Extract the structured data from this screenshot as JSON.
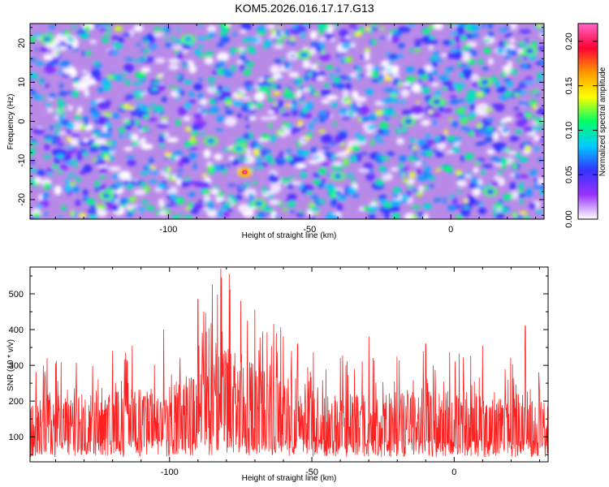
{
  "title": "KOM5.2026.016.17.17.G13",
  "chart_data": [
    {
      "type": "heatmap",
      "xlabel": "Height of straight line (km)",
      "ylabel": "Frequency (Hz)",
      "xlim": [
        -149,
        33
      ],
      "ylim": [
        -25,
        25
      ],
      "x_ticks": [
        -100,
        -50,
        0
      ],
      "x_tick_labels": [
        "-100",
        "-50",
        "0"
      ],
      "y_ticks": [
        -20,
        -10,
        0,
        10,
        20
      ],
      "y_tick_labels": [
        "-20",
        "-10",
        "0",
        "10",
        "20"
      ],
      "colorbar": {
        "label": "Normalized spectral amplitude",
        "range": [
          0,
          0.22
        ],
        "ticks": [
          0.0,
          0.05,
          0.1,
          0.15,
          0.2
        ],
        "tick_labels": [
          "0.00",
          "0.05",
          "0.10",
          "0.15",
          "0.20"
        ],
        "colors": [
          "#ffffff",
          "#9933ff",
          "#3333ff",
          "#00ccff",
          "#00ff66",
          "#ffff00",
          "#ff9900",
          "#ff0033",
          "#ff66cc"
        ]
      },
      "notable_features": [
        {
          "x": -73,
          "y": -13,
          "value": 0.21
        },
        {
          "x": -93,
          "y": 21,
          "value": 0.09
        },
        {
          "x": -143,
          "y": 21,
          "value": 0.08
        },
        {
          "x": -122,
          "y": -19,
          "value": 0.08
        },
        {
          "x": -75,
          "y": -7,
          "value": 0.09
        },
        {
          "x": -68,
          "y": -21,
          "value": 0.08
        },
        {
          "x": -52,
          "y": 17,
          "value": 0.08
        },
        {
          "x": -40,
          "y": -14,
          "value": 0.08
        },
        {
          "x": -5,
          "y": 5,
          "value": 0.07
        },
        {
          "x": 12,
          "y": 10,
          "value": 0.07
        },
        {
          "x": 14,
          "y": -18,
          "value": 0.07
        },
        {
          "x": 28,
          "y": 18,
          "value": 0.07
        },
        {
          "x": -85,
          "y": -5,
          "value": 0.08
        },
        {
          "x": -15,
          "y": 0,
          "value": 0.07
        }
      ]
    },
    {
      "type": "line",
      "xlabel": "Height of straight line (km)",
      "ylabel": "SNR (10 * v/v)",
      "xlim": [
        -149,
        33
      ],
      "ylim": [
        30,
        575
      ],
      "x_ticks": [
        -100,
        -50,
        0
      ],
      "x_tick_labels": [
        "-100",
        "-50",
        "0"
      ],
      "y_ticks": [
        100,
        200,
        300,
        400,
        500
      ],
      "y_tick_labels": [
        "100",
        "200",
        "300",
        "400",
        "500"
      ],
      "color": "#ff2020",
      "x": [
        -149,
        -140,
        -130,
        -120,
        -110,
        -100,
        -95,
        -90,
        -85,
        -82,
        -80,
        -75,
        -70,
        -65,
        -60,
        -55,
        -50,
        -45,
        -40,
        -30,
        -20,
        -10,
        0,
        10,
        20,
        30,
        33
      ],
      "baseline": [
        115,
        120,
        125,
        120,
        125,
        130,
        140,
        150,
        175,
        190,
        185,
        175,
        165,
        155,
        150,
        140,
        130,
        120,
        115,
        115,
        118,
        120,
        120,
        118,
        120,
        122,
        120
      ],
      "peaks": [
        {
          "x": -82,
          "y": 570
        },
        {
          "x": -79,
          "y": 555
        },
        {
          "x": -85,
          "y": 525
        },
        {
          "x": -88,
          "y": 450
        },
        {
          "x": -90,
          "y": 485
        },
        {
          "x": -75,
          "y": 480
        },
        {
          "x": -70,
          "y": 455
        },
        {
          "x": -102,
          "y": 400
        },
        {
          "x": -60,
          "y": 380
        },
        {
          "x": -55,
          "y": 360
        },
        {
          "x": -30,
          "y": 380
        },
        {
          "x": -10,
          "y": 360
        },
        {
          "x": 10,
          "y": 355
        },
        {
          "x": 25,
          "y": 410
        },
        {
          "x": -120,
          "y": 340
        },
        {
          "x": -140,
          "y": 305
        }
      ]
    }
  ]
}
